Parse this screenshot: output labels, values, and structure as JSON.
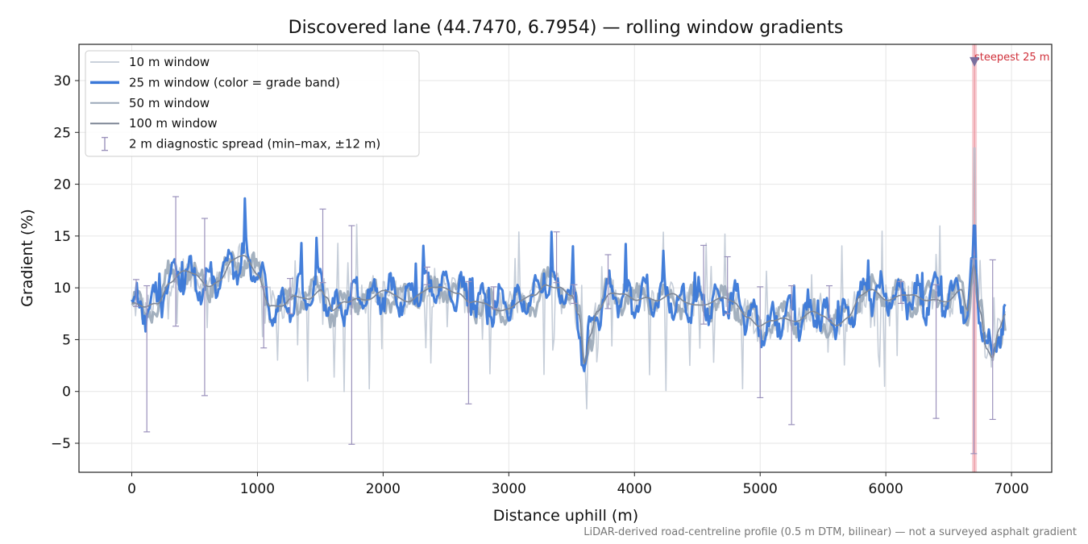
{
  "chart_data": {
    "type": "line",
    "title": "Discovered lane (44.7470, 6.7954) — rolling window gradients",
    "xlabel": "Distance uphill (m)",
    "ylabel": "Gradient (%)",
    "xlim": [
      -420,
      7320
    ],
    "ylim": [
      -7.8,
      33.5
    ],
    "xticks": [
      0,
      1000,
      2000,
      3000,
      4000,
      5000,
      6000,
      7000
    ],
    "xtick_labels": [
      "0",
      "1000",
      "2000",
      "3000",
      "4000",
      "5000",
      "6000",
      "7000"
    ],
    "yticks": [
      -5,
      0,
      5,
      10,
      15,
      20,
      25,
      30
    ],
    "ytick_labels": [
      "−5",
      "0",
      "5",
      "10",
      "15",
      "20",
      "25",
      "30"
    ],
    "grid": true,
    "legend_position": "top-left",
    "legend": [
      {
        "label": "10 m window",
        "style": "thin-line",
        "color": "#b8c2cf"
      },
      {
        "label": "25 m window (color = grade band)",
        "style": "thick-line",
        "color": "#3a78d8"
      },
      {
        "label": "50 m window",
        "style": "line",
        "color": "#9aa8b8"
      },
      {
        "label": "100 m window",
        "style": "line",
        "color": "#7e8796"
      },
      {
        "label": "2 m diagnostic spread (min–max, ±12 m)",
        "style": "errorbar",
        "color": "#9b92bc"
      }
    ],
    "profile_knots": {
      "x": [
        0,
        100,
        200,
        300,
        400,
        500,
        600,
        700,
        800,
        900,
        1000,
        1100,
        1200,
        1300,
        1400,
        1500,
        1550,
        1600,
        1700,
        1800,
        1900,
        2000,
        2100,
        2200,
        2300,
        2400,
        2500,
        2600,
        2700,
        2800,
        2900,
        3000,
        3100,
        3200,
        3300,
        3400,
        3500,
        3560,
        3600,
        3650,
        3700,
        3800,
        3900,
        4000,
        4100,
        4200,
        4300,
        4400,
        4500,
        4600,
        4700,
        4800,
        4900,
        5000,
        5100,
        5200,
        5300,
        5400,
        5500,
        5600,
        5700,
        5800,
        5900,
        6000,
        6100,
        6200,
        6300,
        6400,
        6500,
        6600,
        6650,
        6700,
        6750,
        6800,
        6850,
        6900,
        6950
      ],
      "gradient_100m": [
        8.5,
        7.8,
        8.5,
        10.8,
        11.5,
        11.0,
        10.3,
        11.0,
        12.5,
        12.8,
        11.5,
        8.5,
        8.0,
        9.0,
        9.2,
        10.0,
        9.0,
        7.5,
        8.5,
        9.3,
        9.0,
        9.4,
        9.2,
        9.0,
        9.5,
        9.7,
        10.0,
        9.8,
        8.5,
        8.2,
        8.0,
        8.3,
        8.6,
        9.0,
        10.5,
        10.3,
        9.0,
        7.0,
        2.5,
        5.5,
        8.0,
        9.6,
        9.1,
        8.7,
        9.4,
        8.9,
        9.1,
        8.6,
        8.7,
        8.5,
        8.7,
        8.6,
        7.5,
        6.2,
        6.5,
        7.2,
        7.1,
        7.5,
        7.0,
        6.6,
        7.4,
        9.0,
        9.6,
        9.1,
        9.4,
        9.0,
        8.7,
        9.2,
        8.8,
        9.5,
        7.5,
        12.2,
        8.0,
        4.5,
        3.5,
        6.0,
        7.2
      ]
    },
    "steepest_marker": {
      "x": 6705,
      "gradient": 31.8,
      "label": "steepest 25 m",
      "color": "#d0303a"
    },
    "diagnostic_spread": [
      {
        "x": 35,
        "min": 8.2,
        "max": 10.8
      },
      {
        "x": 120,
        "min": -3.9,
        "max": 10.2
      },
      {
        "x": 350,
        "min": 6.3,
        "max": 18.8
      },
      {
        "x": 580,
        "min": -0.4,
        "max": 16.7
      },
      {
        "x": 1050,
        "min": 4.2,
        "max": 10.1
      },
      {
        "x": 1260,
        "min": 7.5,
        "max": 10.9
      },
      {
        "x": 1520,
        "min": 10.5,
        "max": 17.6
      },
      {
        "x": 1750,
        "min": -5.1,
        "max": 16.0
      },
      {
        "x": 2350,
        "min": 10.3,
        "max": 12.0
      },
      {
        "x": 2680,
        "min": -1.2,
        "max": 10.6
      },
      {
        "x": 2880,
        "min": 8.0,
        "max": 10.1
      },
      {
        "x": 3380,
        "min": 10.5,
        "max": 15.4
      },
      {
        "x": 3520,
        "min": 8.5,
        "max": 10.3
      },
      {
        "x": 3790,
        "min": 8.0,
        "max": 13.2
      },
      {
        "x": 4550,
        "min": 6.5,
        "max": 14.1
      },
      {
        "x": 4740,
        "min": 7.5,
        "max": 13.0
      },
      {
        "x": 5000,
        "min": -0.6,
        "max": 10.1
      },
      {
        "x": 5250,
        "min": -3.2,
        "max": 10.2
      },
      {
        "x": 5550,
        "min": 7.0,
        "max": 10.2
      },
      {
        "x": 6120,
        "min": 8.5,
        "max": 10.6
      },
      {
        "x": 6400,
        "min": -2.6,
        "max": 10.3
      },
      {
        "x": 6700,
        "min": -6.0,
        "max": 12.8
      },
      {
        "x": 6850,
        "min": -2.7,
        "max": 12.7
      }
    ]
  },
  "footnote": "LiDAR-derived road-centreline profile (0.5 m DTM, bilinear) — not a surveyed asphalt gradient",
  "colors": {
    "window_10m": "#b8c2cf",
    "window_25m": "#3a78d8",
    "window_50m": "#9aa8b8",
    "window_100m": "#7e8796",
    "spread": "#9b92bc",
    "highlight_band": "#f3b8bf"
  }
}
